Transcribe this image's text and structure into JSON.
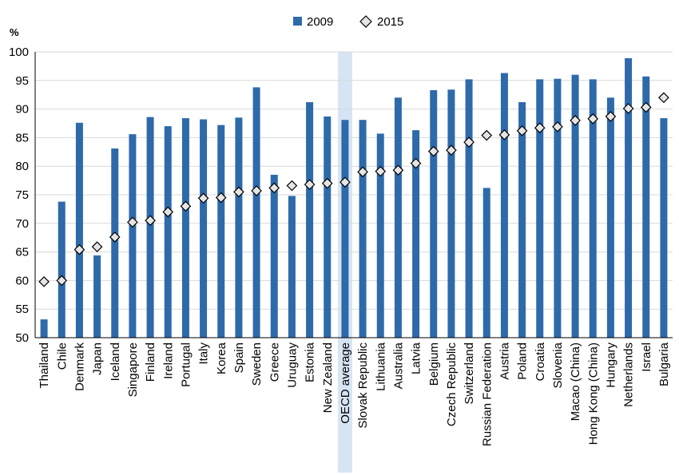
{
  "chart_data": {
    "type": "bar",
    "ylabel": "%",
    "ylim": [
      50,
      100
    ],
    "yticks": [
      50,
      55,
      60,
      65,
      70,
      75,
      80,
      85,
      90,
      95,
      100
    ],
    "grid": true,
    "legend_position": "top",
    "highlight_category": "OECD average",
    "colors": {
      "bar": "#2e6aaa",
      "highlight": "#d6e4f3",
      "marker_fill": "#e5e5e5",
      "marker_stroke": "#000000",
      "grid": "#d9d9d9"
    },
    "categories": [
      "Thailand",
      "Chile",
      "Denmark",
      "Japan",
      "Iceland",
      "Singapore",
      "Finland",
      "Ireland",
      "Portugal",
      "Italy",
      "Korea",
      "Spain",
      "Sweden",
      "Greece",
      "Uruguay",
      "Estonia",
      "New Zealand",
      "OECD average",
      "Slovak Republic",
      "Lithuania",
      "Australia",
      "Latvia",
      "Belgium",
      "Czech Republic",
      "Switzerland",
      "Russian Federation",
      "Austria",
      "Poland",
      "Croatia",
      "Slovenia",
      "Macao (China)",
      "Hong Kong (China)",
      "Hungary",
      "Netherlands",
      "Israel",
      "Bulgaria"
    ],
    "series": [
      {
        "name": "2009",
        "kind": "bar",
        "values": [
          53.2,
          73.8,
          87.6,
          64.4,
          83.1,
          85.6,
          88.6,
          87.0,
          88.4,
          88.2,
          87.2,
          88.5,
          93.8,
          78.5,
          74.8,
          91.2,
          88.7,
          88.1,
          88.1,
          85.7,
          92.0,
          86.3,
          93.3,
          93.4,
          95.2,
          76.2,
          96.3,
          91.2,
          95.2,
          95.3,
          96.0,
          95.2,
          92.0,
          98.9,
          95.7,
          88.4
        ]
      },
      {
        "name": "2015",
        "kind": "marker",
        "values": [
          59.8,
          60.0,
          65.4,
          65.9,
          67.6,
          70.2,
          70.5,
          72.0,
          73.0,
          74.4,
          74.5,
          75.5,
          75.7,
          76.2,
          76.6,
          76.8,
          77.0,
          77.2,
          79.0,
          79.1,
          79.3,
          80.5,
          82.6,
          82.8,
          84.2,
          85.4,
          85.5,
          86.2,
          86.7,
          86.9,
          88.0,
          88.3,
          88.7,
          90.1,
          90.3,
          92.0
        ]
      }
    ]
  }
}
